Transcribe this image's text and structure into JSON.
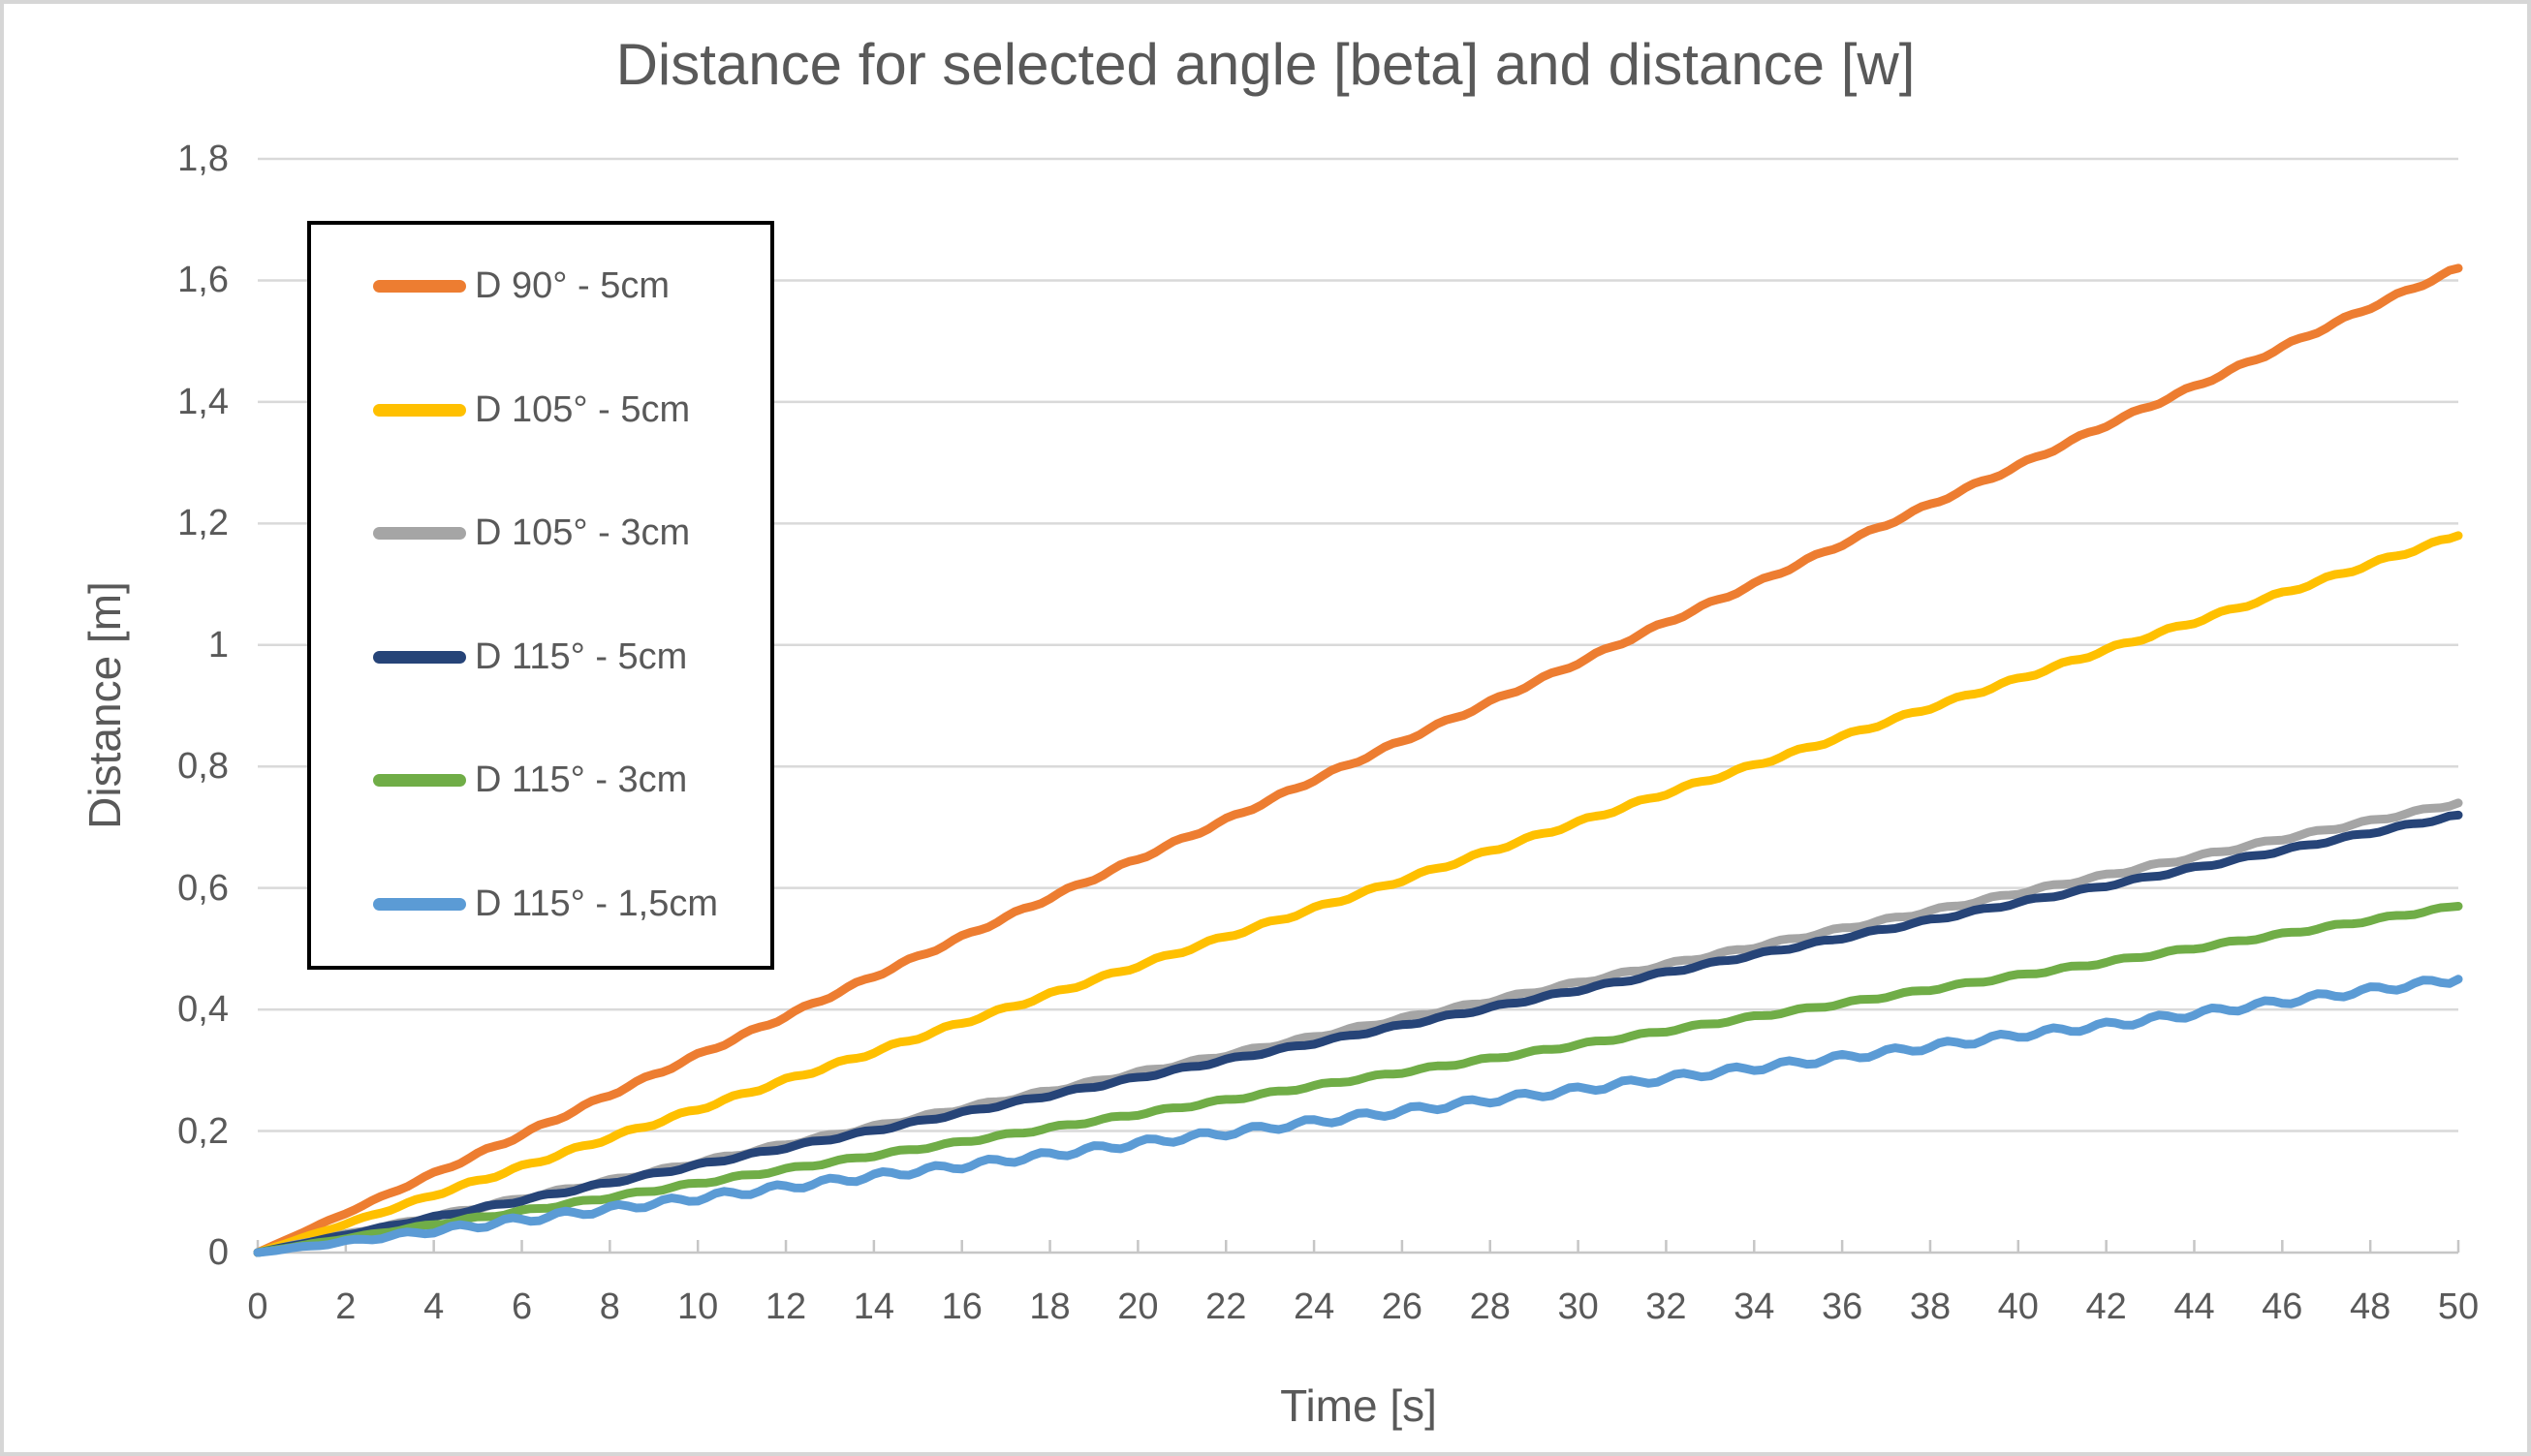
{
  "style": {
    "background": "#FFFFFF",
    "frame_border": "#D6D6D6",
    "text_color": "#595959",
    "gridline_color": "#D9D9D9",
    "axis_line_color": "#C6C6C6",
    "legend_border": "#000000"
  },
  "chart_data": {
    "type": "line",
    "title": "Distance for selected angle [beta] and distance [w]",
    "xlabel": "Time [s]",
    "ylabel": "Distance [m]",
    "x_range": [
      0,
      50
    ],
    "y_range": [
      0,
      1.8
    ],
    "grid": true,
    "legend_position": "upper-left-box",
    "decimal_separator": ",",
    "x_ticks": [
      "0",
      "2",
      "4",
      "6",
      "8",
      "10",
      "12",
      "14",
      "16",
      "18",
      "20",
      "22",
      "24",
      "26",
      "28",
      "30",
      "32",
      "34",
      "36",
      "38",
      "40",
      "42",
      "44",
      "46",
      "48",
      "50"
    ],
    "y_ticks": [
      {
        "value": 1.8,
        "label": "1,8"
      },
      {
        "value": 1.6,
        "label": "1,6"
      },
      {
        "value": 1.4,
        "label": "1,4"
      },
      {
        "value": 1.2,
        "label": "1,2"
      },
      {
        "value": 1.0,
        "label": "1"
      },
      {
        "value": 0.8,
        "label": "0,8"
      },
      {
        "value": 0.6,
        "label": "0,6"
      },
      {
        "value": 0.4,
        "label": "0,4"
      },
      {
        "value": 0.2,
        "label": "0,2"
      },
      {
        "value": 0.0,
        "label": "0"
      }
    ],
    "x": [
      0,
      2,
      4,
      6,
      8,
      10,
      12,
      14,
      16,
      18,
      20,
      22,
      24,
      26,
      28,
      30,
      32,
      34,
      36,
      38,
      40,
      42,
      44,
      46,
      48,
      50
    ],
    "series": [
      {
        "name": "D 90° - 5cm",
        "color": "#ED7D31",
        "jitter_m": 0.003,
        "values": [
          0,
          0.065,
          0.13,
          0.194,
          0.26,
          0.325,
          0.389,
          0.455,
          0.519,
          0.584,
          0.648,
          0.712,
          0.778,
          0.842,
          0.906,
          0.971,
          1.037,
          1.1,
          1.166,
          1.231,
          1.295,
          1.362,
          1.425,
          1.49,
          1.556,
          1.62
        ]
      },
      {
        "name": "D 105° - 5cm",
        "color": "#FFC000",
        "jitter_m": 0.003,
        "values": [
          0,
          0.047,
          0.095,
          0.141,
          0.189,
          0.236,
          0.284,
          0.33,
          0.378,
          0.425,
          0.472,
          0.52,
          0.566,
          0.613,
          0.661,
          0.708,
          0.756,
          0.802,
          0.849,
          0.897,
          0.944,
          0.992,
          1.038,
          1.085,
          1.133,
          1.18
        ]
      },
      {
        "name": "D 105° - 3cm",
        "color": "#A5A5A5",
        "jitter_m": 0.0025,
        "values": [
          0,
          0.03,
          0.059,
          0.089,
          0.118,
          0.148,
          0.178,
          0.207,
          0.237,
          0.266,
          0.296,
          0.325,
          0.355,
          0.385,
          0.414,
          0.444,
          0.474,
          0.503,
          0.533,
          0.562,
          0.592,
          0.621,
          0.651,
          0.681,
          0.71,
          0.74
        ]
      },
      {
        "name": "D 115° - 5cm",
        "color": "#264478",
        "jitter_m": 0.0022,
        "values": [
          0,
          0.029,
          0.058,
          0.086,
          0.115,
          0.144,
          0.173,
          0.201,
          0.23,
          0.259,
          0.288,
          0.317,
          0.345,
          0.374,
          0.403,
          0.432,
          0.461,
          0.49,
          0.518,
          0.547,
          0.576,
          0.604,
          0.633,
          0.662,
          0.691,
          0.72
        ]
      },
      {
        "name": "D 115° - 3cm",
        "color": "#70AD47",
        "jitter_m": 0.0022,
        "values": [
          0,
          0.023,
          0.046,
          0.068,
          0.091,
          0.114,
          0.137,
          0.16,
          0.182,
          0.205,
          0.228,
          0.251,
          0.274,
          0.297,
          0.319,
          0.342,
          0.365,
          0.388,
          0.41,
          0.433,
          0.456,
          0.478,
          0.501,
          0.524,
          0.547,
          0.57
        ]
      },
      {
        "name": "D 115° - 1,5cm",
        "color": "#5B9BD5",
        "jitter_m": 0.0055,
        "values": [
          0,
          0.018,
          0.036,
          0.054,
          0.072,
          0.09,
          0.108,
          0.126,
          0.143,
          0.161,
          0.18,
          0.197,
          0.215,
          0.233,
          0.251,
          0.268,
          0.287,
          0.304,
          0.321,
          0.339,
          0.358,
          0.374,
          0.393,
          0.413,
          0.432,
          0.45
        ]
      }
    ]
  }
}
